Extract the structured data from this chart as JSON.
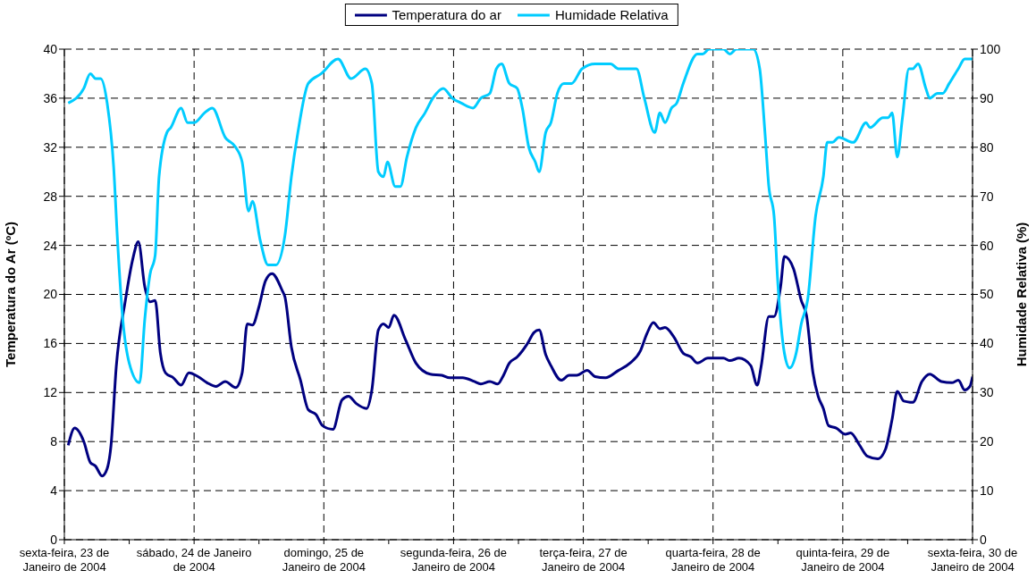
{
  "chart_data": {
    "type": "line",
    "ylabel": "Temperatura do Ar (ºC)",
    "y2label": "Humidade Relativa (%)",
    "xlim": [
      "2004-01-23",
      "2004-01-30"
    ],
    "xticks": [
      {
        "value": "2004-01-23",
        "label": "sexta-feira, 23 de Janeiro de 2004"
      },
      {
        "value": "2004-01-23T12:00",
        "label": null
      },
      {
        "value": "2004-01-24",
        "label": "sábado, 24 de Janeiro de 2004"
      },
      {
        "value": "2004-01-24T12:00",
        "label": null
      },
      {
        "value": "2004-01-25",
        "label": "domingo, 25 de Janeiro de 2004"
      },
      {
        "value": "2004-01-25T12:00",
        "label": null
      },
      {
        "value": "2004-01-26",
        "label": "segunda-feira, 26 de Janeiro de 2004"
      },
      {
        "value": "2004-01-26T12:00",
        "label": null
      },
      {
        "value": "2004-01-27",
        "label": "terça-feira, 27 de Janeiro de 2004"
      },
      {
        "value": "2004-01-27T12:00",
        "label": null
      },
      {
        "value": "2004-01-28",
        "label": "quarta-feira, 28 de Janeiro de 2004"
      },
      {
        "value": "2004-01-28T12:00",
        "label": null
      },
      {
        "value": "2004-01-29",
        "label": "quinta-feira, 29 de Janeiro de 2004"
      },
      {
        "value": "2004-01-29T12:00",
        "label": null
      },
      {
        "value": "2004-01-30",
        "label": "sexta-feira, 30 de Janeiro de 2004"
      }
    ],
    "ylim": [
      0,
      40
    ],
    "yticks": [
      0,
      4,
      8,
      12,
      16,
      20,
      24,
      28,
      32,
      36,
      40
    ],
    "y2lim": [
      0,
      100
    ],
    "y2ticks": [
      0,
      10,
      20,
      30,
      40,
      50,
      60,
      70,
      80,
      90,
      100
    ],
    "grid": true,
    "legend": "top",
    "line_style": "solid",
    "marker": "none",
    "series": [
      {
        "name": "Temperatura do ar",
        "color": "#000080",
        "x": [
          "2004-01-23T00:43",
          "2004-01-23T01:55",
          "2004-01-23T03:36",
          "2004-01-23T04:48",
          "2004-01-23T05:46",
          "2004-01-23T06:58",
          "2004-01-23T07:55",
          "2004-01-23T08:38",
          "2004-01-23T09:36",
          "2004-01-23T11:17",
          "2004-01-23T12:43",
          "2004-01-23T13:41",
          "2004-01-23T14:53",
          "2004-01-23T15:50",
          "2004-01-23T16:48",
          "2004-01-23T17:46",
          "2004-01-23T18:43",
          "2004-01-23T20:10",
          "2004-01-23T21:36",
          "2004-01-23T23:02",
          "2004-01-24T00:43",
          "2004-01-24T02:24",
          "2004-01-24T04:05",
          "2004-01-24T05:46",
          "2004-01-24T07:41",
          "2004-01-24T08:53",
          "2004-01-24T09:50",
          "2004-01-24T10:48",
          "2004-01-24T12:00",
          "2004-01-24T13:12",
          "2004-01-24T14:24",
          "2004-01-24T16:19",
          "2004-01-24T16:48",
          "2004-01-24T18:00",
          "2004-01-24T19:41",
          "2004-01-24T21:07",
          "2004-01-24T22:34",
          "2004-01-24T23:46",
          "2004-01-25T01:41",
          "2004-01-25T03:22",
          "2004-01-25T04:34",
          "2004-01-25T06:00",
          "2004-01-25T07:55",
          "2004-01-25T08:53",
          "2004-01-25T10:05",
          "2004-01-25T11:02",
          "2004-01-25T12:00",
          "2004-01-25T12:58",
          "2004-01-25T15:07",
          "2004-01-25T17:02",
          "2004-01-25T19:41",
          "2004-01-25T21:50",
          "2004-01-25T23:17",
          "2004-01-26T01:41",
          "2004-01-26T03:50",
          "2004-01-26T05:02",
          "2004-01-26T06:43",
          "2004-01-26T08:10",
          "2004-01-26T09:07",
          "2004-01-26T10:19",
          "2004-01-26T11:46",
          "2004-01-26T13:41",
          "2004-01-26T14:53",
          "2004-01-26T15:50",
          "2004-01-26T17:02",
          "2004-01-26T18:00",
          "2004-01-26T19:55",
          "2004-01-26T21:22",
          "2004-01-26T22:48",
          "2004-01-27T00:43",
          "2004-01-27T02:10",
          "2004-01-27T04:05",
          "2004-01-27T06:29",
          "2004-01-27T08:38",
          "2004-01-27T10:34",
          "2004-01-27T11:46",
          "2004-01-27T12:58",
          "2004-01-27T14:10",
          "2004-01-27T15:07",
          "2004-01-27T16:48",
          "2004-01-27T18:29",
          "2004-01-27T19:55",
          "2004-01-27T21:07",
          "2004-01-27T23:02",
          "2004-01-28T01:55",
          "2004-01-28T03:07",
          "2004-01-28T04:48",
          "2004-01-28T06:58",
          "2004-01-28T08:10",
          "2004-01-28T08:53",
          "2004-01-28T10:19",
          "2004-01-28T11:17",
          "2004-01-28T12:29",
          "2004-01-28T13:12",
          "2004-01-28T14:53",
          "2004-01-28T16:19",
          "2004-01-28T17:17",
          "2004-01-28T18:29",
          "2004-01-28T19:26",
          "2004-01-28T20:24",
          "2004-01-28T21:22",
          "2004-01-28T22:48",
          "2004-01-29T00:29",
          "2004-01-29T01:26",
          "2004-01-29T03:07",
          "2004-01-29T04:34",
          "2004-01-29T06:29",
          "2004-01-29T07:55",
          "2004-01-29T09:07",
          "2004-01-29T10:05",
          "2004-01-29T11:17",
          "2004-01-29T12:58",
          "2004-01-29T14:38",
          "2004-01-29T16:05",
          "2004-01-29T18:14",
          "2004-01-29T20:10",
          "2004-01-29T21:22",
          "2004-01-29T22:34",
          "2004-01-29T23:31",
          "2004-01-30"
        ],
        "values": [
          7.7,
          9.1,
          8.0,
          6.3,
          6.0,
          5.2,
          5.8,
          7.7,
          14.1,
          19.5,
          23.0,
          24.3,
          20.6,
          19.4,
          19.5,
          15.2,
          13.6,
          13.2,
          12.6,
          13.6,
          13.3,
          12.8,
          12.5,
          12.9,
          12.4,
          13.6,
          17.6,
          17.5,
          19.0,
          21.1,
          21.7,
          20.3,
          19.8,
          15.7,
          13.0,
          10.6,
          10.2,
          9.3,
          9.0,
          11.4,
          11.7,
          11.1,
          10.7,
          12.2,
          17.1,
          17.6,
          17.3,
          18.3,
          16.3,
          14.4,
          13.5,
          13.4,
          13.2,
          13.2,
          12.9,
          12.7,
          12.9,
          12.7,
          13.3,
          14.4,
          14.9,
          16.0,
          16.9,
          17.1,
          15.1,
          14.2,
          13.0,
          13.4,
          13.4,
          13.8,
          13.3,
          13.2,
          13.8,
          14.4,
          15.4,
          16.8,
          17.7,
          17.2,
          17.3,
          16.5,
          15.2,
          14.9,
          14.4,
          14.8,
          14.8,
          14.6,
          14.8,
          14.2,
          12.6,
          14.1,
          18.2,
          18.2,
          20.6,
          23.1,
          22.1,
          19.5,
          18.3,
          13.6,
          11.7,
          10.7,
          9.3,
          9.1,
          8.6,
          8.7,
          7.7,
          6.8,
          6.6,
          7.4,
          9.8,
          12.1,
          11.3,
          11.2,
          12.9,
          13.5,
          12.9,
          12.8,
          13.0,
          12.2,
          12.5,
          13.3
        ]
      },
      {
        "name": "Humidade Relativa",
        "color": "#00ccff",
        "axis": "y2",
        "x": [
          "2004-01-23T00:43",
          "2004-01-23T03:36",
          "2004-01-23T04:48",
          "2004-01-23T05:46",
          "2004-01-23T06:43",
          "2004-01-23T07:55",
          "2004-01-23T09:07",
          "2004-01-23T09:50",
          "2004-01-23T10:48",
          "2004-01-23T12:00",
          "2004-01-23T13:55",
          "2004-01-23T14:53",
          "2004-01-23T15:50",
          "2004-01-23T16:48",
          "2004-01-23T17:31",
          "2004-01-23T18:58",
          "2004-01-23T19:41",
          "2004-01-23T21:36",
          "2004-01-23T22:48",
          "2004-01-24",
          "2004-01-24T01:55",
          "2004-01-24T03:22",
          "2004-01-24T05:46",
          "2004-01-24T07:41",
          "2004-01-24T08:53",
          "2004-01-24T10:05",
          "2004-01-24T10:48",
          "2004-01-24T12:14",
          "2004-01-24T13:41",
          "2004-01-24T15:07",
          "2004-01-24T16:48",
          "2004-01-24T18:00",
          "2004-01-24T19:12",
          "2004-01-24T21:07",
          "2004-01-24T23:31",
          "2004-01-25T02:38",
          "2004-01-25T05:02",
          "2004-01-25T07:41",
          "2004-01-25T08:53",
          "2004-01-25T10:05",
          "2004-01-25T11:02",
          "2004-01-25T11:46",
          "2004-01-25T13:12",
          "2004-01-25T14:10",
          "2004-01-25T15:22",
          "2004-01-25T17:02",
          "2004-01-25T18:43",
          "2004-01-25T20:10",
          "2004-01-25T22:05",
          "2004-01-25T23:46",
          "2004-01-26T01:26",
          "2004-01-26T03:36",
          "2004-01-26T05:02",
          "2004-01-26T06:43",
          "2004-01-26T07:55",
          "2004-01-26T08:53",
          "2004-01-26T10:19",
          "2004-01-26T11:46",
          "2004-01-26T12:43",
          "2004-01-26T13:55",
          "2004-01-26T15:07",
          "2004-01-26T15:50",
          "2004-01-26T17:02",
          "2004-01-26T18:00",
          "2004-01-26T19:12",
          "2004-01-26T20:24",
          "2004-01-26T21:50",
          "2004-01-26T23:46",
          "2004-01-27T02:10",
          "2004-01-27T05:02",
          "2004-01-27T06:29",
          "2004-01-27T09:50",
          "2004-01-27T11:17",
          "2004-01-27T13:12",
          "2004-01-27T14:10",
          "2004-01-27T15:07",
          "2004-01-27T16:19",
          "2004-01-27T17:17",
          "2004-01-27T18:29",
          "2004-01-27T21:07",
          "2004-01-27T22:05",
          "2004-01-27T23:17",
          "2004-01-28T01:55",
          "2004-01-28T03:07",
          "2004-01-28T04:19",
          "2004-01-28T07:26",
          "2004-01-28T08:38",
          "2004-01-28T09:36",
          "2004-01-28T10:19",
          "2004-01-28T11:17",
          "2004-01-28T12:00",
          "2004-01-28T13:12",
          "2004-01-28T14:10",
          "2004-01-28T15:22",
          "2004-01-28T16:19",
          "2004-01-28T17:31",
          "2004-01-28T18:58",
          "2004-01-28T20:24",
          "2004-01-28T21:07",
          "2004-01-28T22:05",
          "2004-01-28T23:17",
          "2004-01-29T01:55",
          "2004-01-29T04:19",
          "2004-01-29T05:02",
          "2004-01-29T07:26",
          "2004-01-29T08:24",
          "2004-01-29T09:07",
          "2004-01-29T10:05",
          "2004-01-29T11:02",
          "2004-01-29T12:14",
          "2004-01-29T12:58",
          "2004-01-29T13:55",
          "2004-01-29T15:22",
          "2004-01-29T16:05",
          "2004-01-29T17:31",
          "2004-01-29T18:29",
          "2004-01-29T19:41",
          "2004-01-29T21:22",
          "2004-01-29T22:34",
          "2004-01-30"
        ],
        "values": [
          89,
          92,
          95,
          94,
          94,
          89,
          76,
          61,
          45,
          36,
          32,
          45,
          54,
          58,
          74,
          83,
          84,
          88,
          85,
          85,
          87,
          88,
          82,
          80,
          77,
          67,
          69,
          61,
          56,
          56,
          62,
          74,
          83,
          93,
          95,
          98,
          94,
          96,
          93,
          75,
          74,
          77,
          72,
          72,
          78,
          84,
          87,
          90,
          92,
          90,
          89,
          88,
          90,
          91,
          96,
          97,
          93,
          92,
          88,
          80,
          77,
          75,
          83,
          85,
          91,
          93,
          93,
          96,
          97,
          97,
          96,
          96,
          90,
          83,
          87,
          85,
          88,
          89,
          93,
          99,
          99,
          100,
          100,
          99,
          100,
          100,
          96,
          83,
          72,
          66,
          52,
          38,
          35,
          38,
          44,
          49,
          66,
          74,
          81,
          81,
          82,
          81,
          85,
          84,
          86,
          86,
          87,
          78,
          86,
          96,
          96,
          97,
          92,
          90,
          91,
          91,
          93,
          96,
          98,
          98
        ]
      }
    ]
  }
}
